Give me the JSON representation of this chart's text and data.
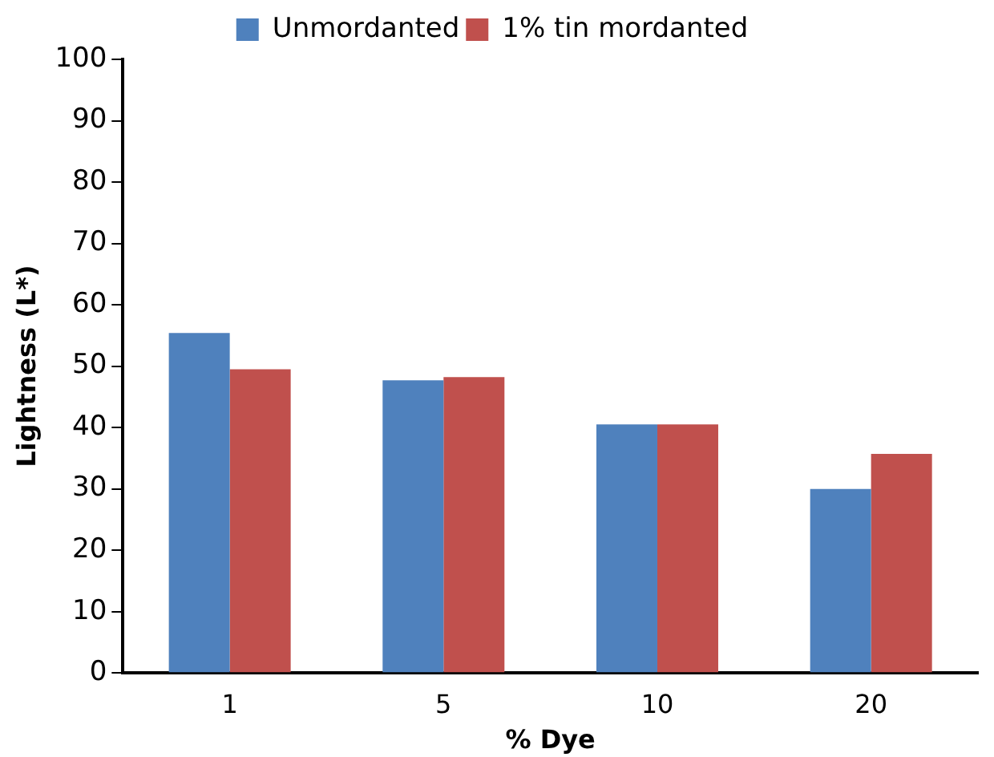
{
  "chart_data": {
    "type": "bar",
    "xlabel": "% Dye",
    "ylabel": "Lightness (L*)",
    "categories": [
      "1",
      "5",
      "10",
      "20"
    ],
    "series": [
      {
        "name": "Unmordanted",
        "color": "#4f81bd",
        "values": [
          55.4,
          47.7,
          40.5,
          30.0
        ]
      },
      {
        "name": "1% tin mordanted",
        "color": "#c0504d",
        "values": [
          49.5,
          48.2,
          40.5,
          35.7
        ]
      }
    ],
    "ylim": [
      0,
      100
    ],
    "yticks": [
      0,
      10,
      20,
      30,
      40,
      50,
      60,
      70,
      80,
      90,
      100
    ],
    "grid": false,
    "legend": "top"
  }
}
